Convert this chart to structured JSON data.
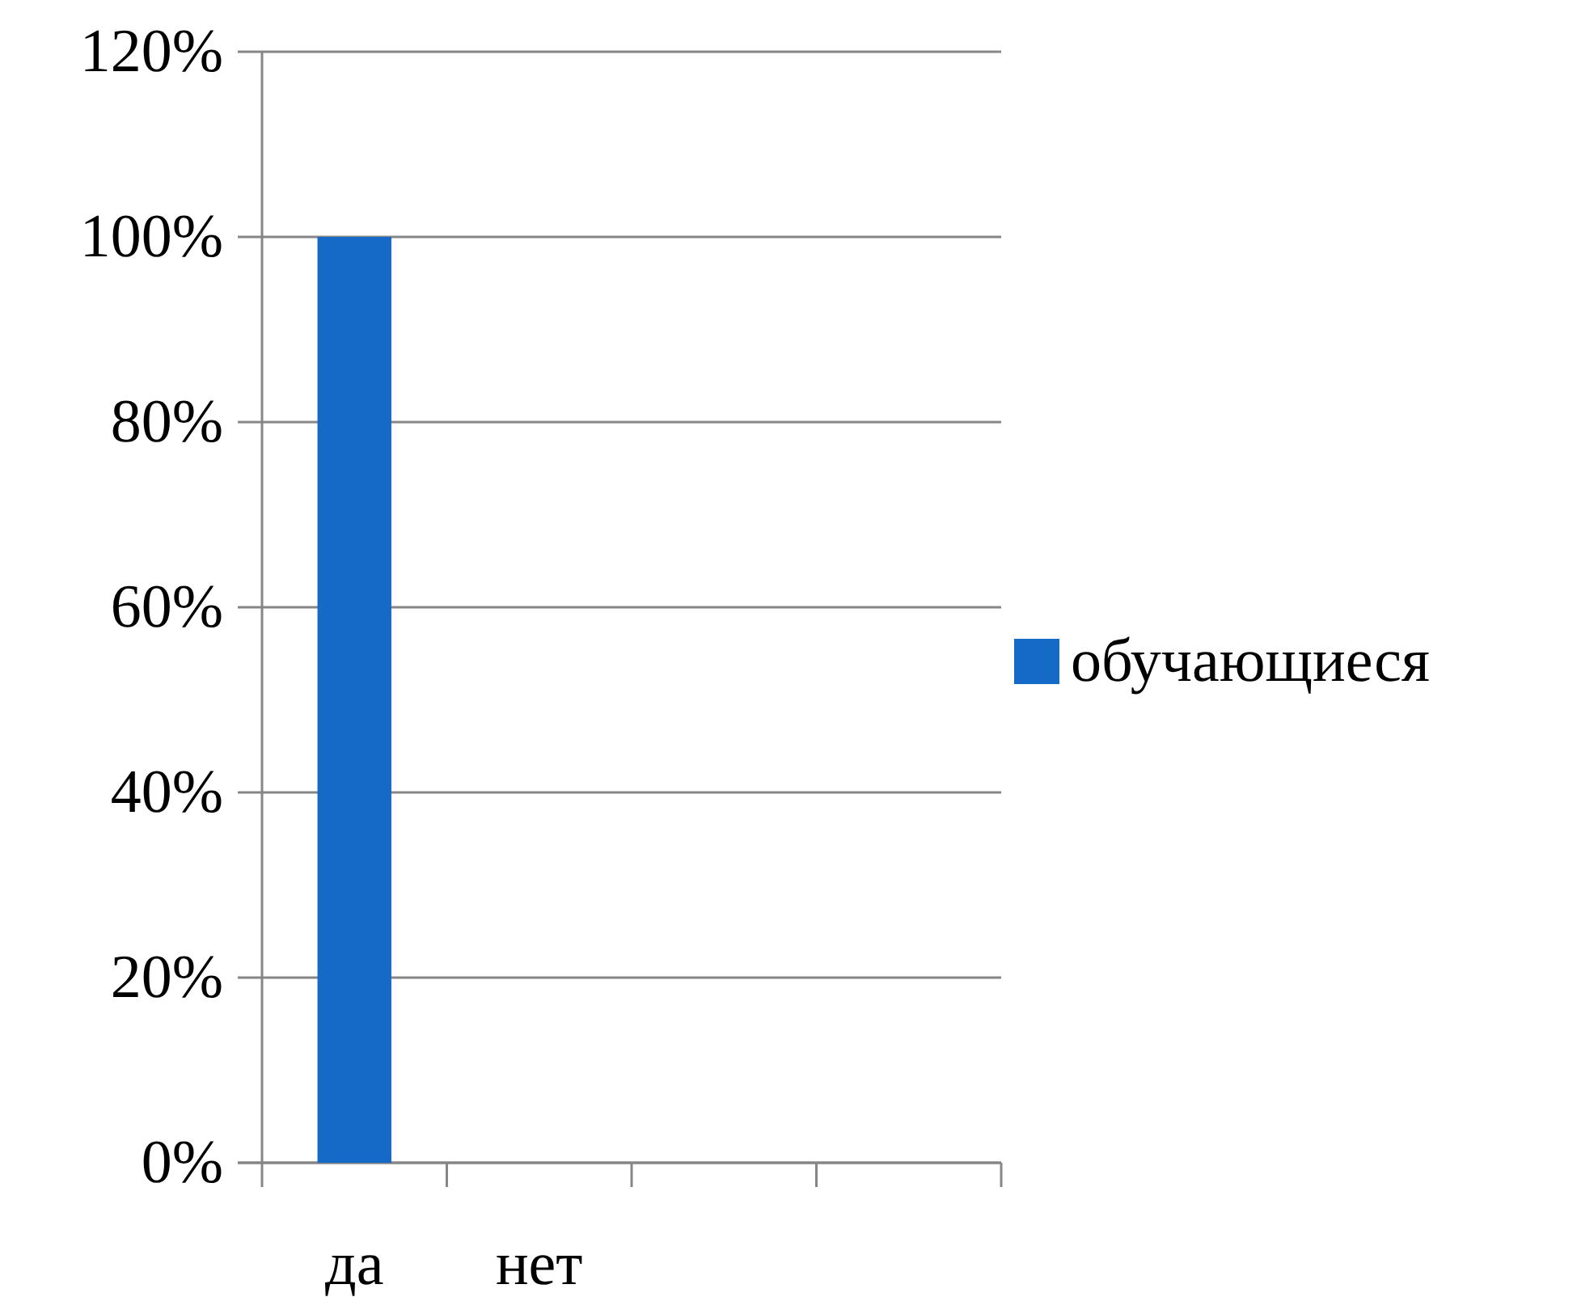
{
  "chart_data": {
    "type": "bar",
    "categories": [
      "да",
      "нет",
      null,
      null
    ],
    "series": [
      {
        "name": "обучающиеся",
        "color": "#1569c7",
        "values": [
          100,
          0,
          null,
          null
        ]
      }
    ],
    "ylim": [
      0,
      120
    ],
    "yticks": [
      {
        "value": 0,
        "label": "0%"
      },
      {
        "value": 20,
        "label": "20%"
      },
      {
        "value": 40,
        "label": "40%"
      },
      {
        "value": 60,
        "label": "60%"
      },
      {
        "value": 80,
        "label": "80%"
      },
      {
        "value": 100,
        "label": "100%"
      },
      {
        "value": 120,
        "label": "120%"
      }
    ],
    "grid": "y",
    "legend": "right"
  }
}
